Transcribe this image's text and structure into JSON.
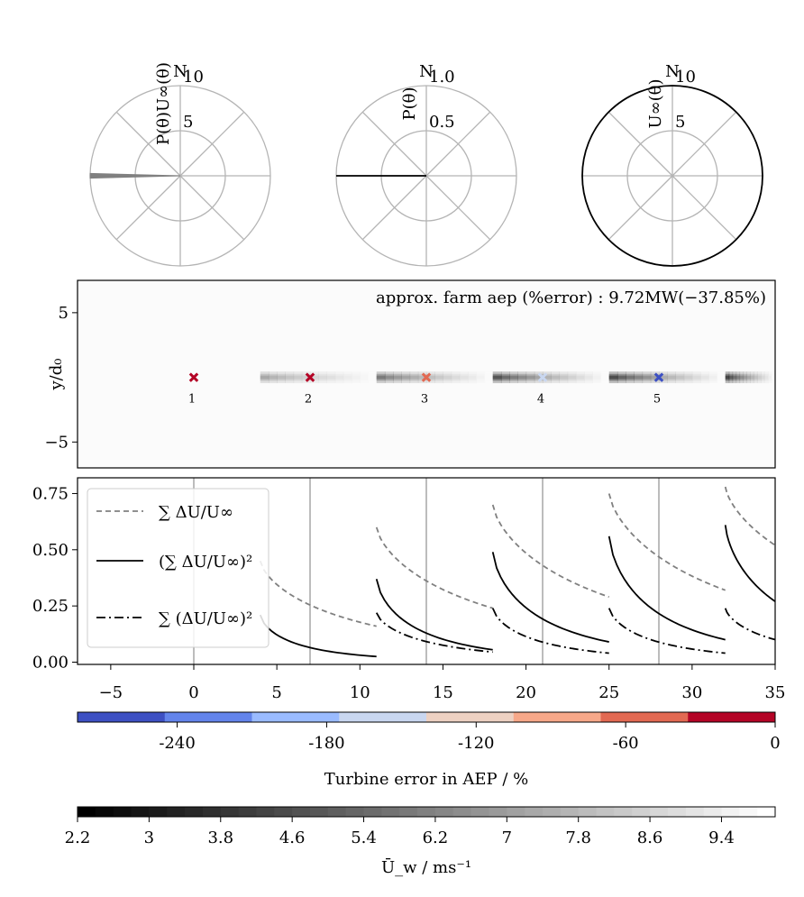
{
  "colors": {
    "grid": "#b4b4b4",
    "dashed": "#808080",
    "solid": "#000000",
    "coolwarm": [
      "#3d50c3",
      "#6384eb",
      "#9abbff",
      "#c9d7f0",
      "#edd1c2",
      "#f7a889",
      "#e26952",
      "#b40426"
    ]
  },
  "chart_data": [
    {
      "type": "polar",
      "id": "polar-1",
      "north_label": "N",
      "radial_label": "P(θ)U∞(θ)",
      "rmax": 10,
      "r_ticks": [
        {
          "value": 5,
          "label": "5"
        },
        {
          "value": 10,
          "label": "10"
        }
      ],
      "wedge": {
        "direction_deg": 270,
        "half_width_deg": 1.5,
        "r": 10,
        "color": "#808080"
      }
    },
    {
      "type": "polar",
      "id": "polar-2",
      "north_label": "N",
      "radial_label": "P(θ)",
      "rmax": 1.0,
      "r_ticks": [
        {
          "value": 0.5,
          "label": "0.5"
        },
        {
          "value": 1.0,
          "label": "1.0"
        }
      ],
      "line": {
        "direction_deg": 270,
        "r": 1.0
      }
    },
    {
      "type": "polar",
      "id": "polar-3",
      "north_label": "N",
      "radial_label": "U∞(θ)",
      "rmax": 10,
      "r_ticks": [
        {
          "value": 5,
          "label": "5"
        },
        {
          "value": 10,
          "label": "10"
        }
      ],
      "circle": {
        "r": 10
      }
    },
    {
      "type": "heatmap",
      "id": "flow-field",
      "annotation": "approx. farm aep (%error) : 9.72MW(−37.85%)",
      "ylabel": "y/d₀",
      "xlim": [
        -7,
        35
      ],
      "ylim": [
        -7,
        7.5
      ],
      "y_ticks": [
        5,
        -5
      ],
      "y_tick_labels": [
        "5",
        "−5"
      ],
      "wake_half_width": 0.45,
      "turbines": [
        {
          "label": "1",
          "x": 0,
          "y": 0,
          "color": "#b40426"
        },
        {
          "label": "2",
          "x": 7,
          "y": 0,
          "color": "#b40426"
        },
        {
          "label": "3",
          "x": 14,
          "y": 0,
          "color": "#e26952"
        },
        {
          "label": "4",
          "x": 21,
          "y": 0,
          "color": "#c9d7f0"
        },
        {
          "label": "5",
          "x": 28,
          "y": 0,
          "color": "#3d50c3"
        }
      ],
      "wakes": [
        {
          "x0": 4,
          "x1": 11,
          "min": 0.55
        },
        {
          "x0": 11,
          "x1": 18,
          "min": 0.3
        },
        {
          "x0": 18,
          "x1": 25,
          "min": 0.1
        },
        {
          "x0": 25,
          "x1": 32,
          "min": 0.05
        },
        {
          "x0": 32,
          "x1": 35,
          "min": 0.02
        }
      ]
    },
    {
      "type": "line",
      "id": "deficit-lines",
      "xlim": [
        -7,
        35
      ],
      "ylim": [
        -0.01,
        0.82
      ],
      "x_ticks": [
        -5,
        0,
        5,
        10,
        15,
        20,
        25,
        30,
        35
      ],
      "x_tick_labels": [
        "−5",
        "0",
        "5",
        "10",
        "15",
        "20",
        "25",
        "30",
        "35"
      ],
      "y_ticks": [
        0.0,
        0.25,
        0.5,
        0.75
      ],
      "y_tick_labels": [
        "0.00",
        "0.25",
        "0.50",
        "0.75"
      ],
      "vlines": [
        0,
        7,
        14,
        21,
        28
      ],
      "legend": {
        "placement": "upper-left",
        "entries": [
          {
            "style": "dashed",
            "label": "∑ ΔU/U∞"
          },
          {
            "style": "solid",
            "label": "(∑ ΔU/U∞)²"
          },
          {
            "style": "dashdot",
            "label": "∑ (ΔU/U∞)²"
          }
        ]
      },
      "series": [
        {
          "style": "dashed",
          "segments": [
            {
              "x0": 4,
              "x1": 11,
              "y0": 0.45,
              "y1": 0.16
            },
            {
              "x0": 11,
              "x1": 18,
              "y0": 0.6,
              "y1": 0.24
            },
            {
              "x0": 18,
              "x1": 25,
              "y0": 0.7,
              "y1": 0.29
            },
            {
              "x0": 25,
              "x1": 32,
              "y0": 0.75,
              "y1": 0.32
            },
            {
              "x0": 32,
              "x1": 35,
              "y0": 0.78,
              "y1": 0.52
            }
          ]
        },
        {
          "style": "solid",
          "segments": [
            {
              "x0": 4,
              "x1": 11,
              "y0": 0.21,
              "y1": 0.025
            },
            {
              "x0": 11,
              "x1": 18,
              "y0": 0.37,
              "y1": 0.055
            },
            {
              "x0": 18,
              "x1": 25,
              "y0": 0.49,
              "y1": 0.09
            },
            {
              "x0": 25,
              "x1": 32,
              "y0": 0.56,
              "y1": 0.1
            },
            {
              "x0": 32,
              "x1": 35,
              "y0": 0.61,
              "y1": 0.27
            }
          ]
        },
        {
          "style": "dashdot",
          "segments": [
            {
              "x0": 11,
              "x1": 18,
              "y0": 0.22,
              "y1": 0.045
            },
            {
              "x0": 18,
              "x1": 25,
              "y0": 0.24,
              "y1": 0.04
            },
            {
              "x0": 25,
              "x1": 32,
              "y0": 0.24,
              "y1": 0.04
            },
            {
              "x0": 32,
              "x1": 35,
              "y0": 0.24,
              "y1": 0.1
            }
          ]
        }
      ]
    },
    {
      "type": "colorbar",
      "id": "turbine-error-colorbar",
      "label": "Turbine error in AEP / %",
      "range": [
        -280,
        0
      ],
      "bins": 8,
      "ticks": [
        -240,
        -180,
        -120,
        -60,
        0
      ],
      "tick_labels": [
        "-240",
        "-180",
        "-120",
        "-60",
        "0"
      ]
    },
    {
      "type": "colorbar",
      "id": "wind-speed-colorbar",
      "label": "Ū_w / ms⁻¹",
      "range": [
        2.2,
        10.0
      ],
      "bins": 39,
      "ticks": [
        2.2,
        3,
        3.8,
        4.6,
        5.4,
        6.2,
        7,
        7.8,
        8.6,
        9.4
      ],
      "tick_labels": [
        "2.2",
        "3",
        "3.8",
        "4.6",
        "5.4",
        "6.2",
        "7",
        "7.8",
        "8.6",
        "9.4"
      ]
    }
  ]
}
